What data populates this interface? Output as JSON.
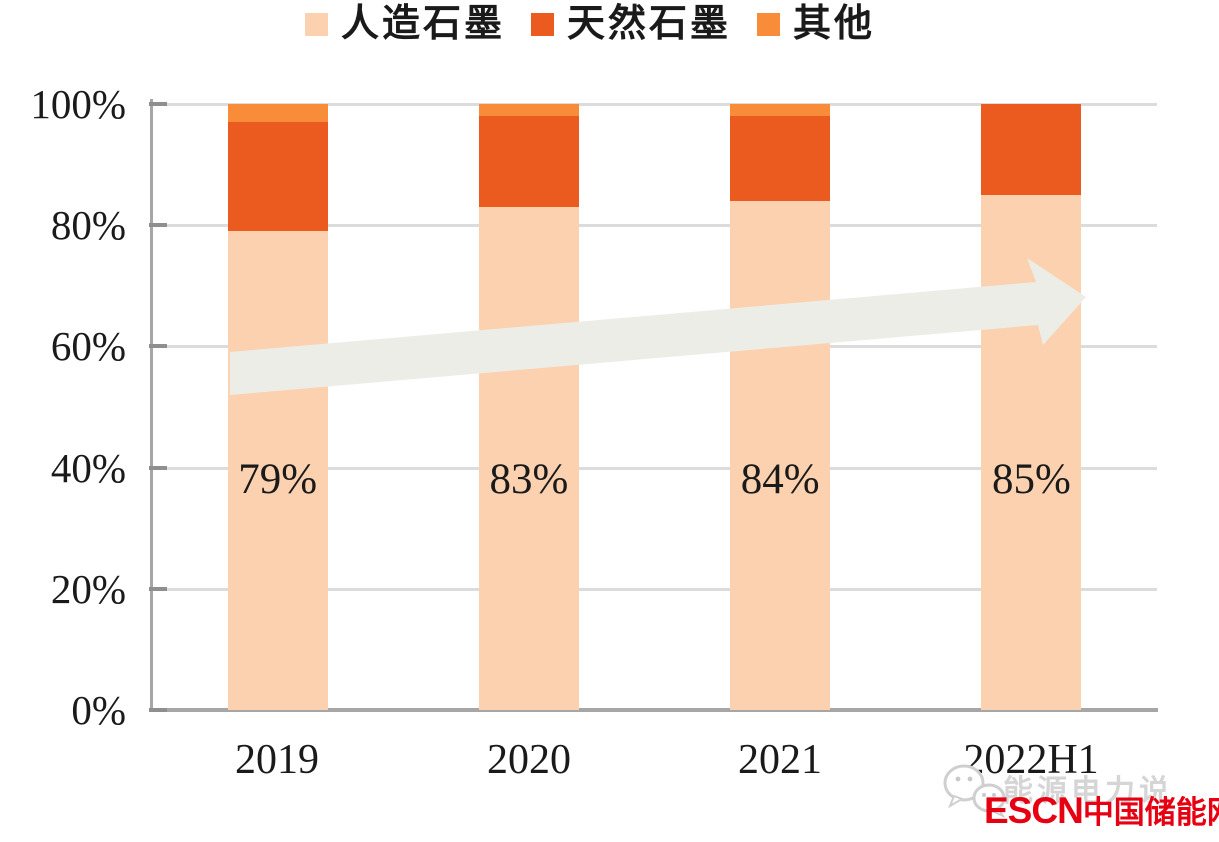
{
  "chart_data": {
    "type": "bar",
    "stacked": true,
    "categories": [
      "2019",
      "2020",
      "2021",
      "2022H1"
    ],
    "series": [
      {
        "name": "人造石墨",
        "color": "#FBD1AF",
        "values": [
          79,
          83,
          84,
          85
        ]
      },
      {
        "name": "天然石墨",
        "color": "#EB5A1E",
        "values": [
          18,
          15,
          14,
          15
        ]
      },
      {
        "name": "其他",
        "color": "#F98C38",
        "values": [
          3,
          2,
          2,
          0
        ]
      }
    ],
    "bar_labels": [
      "79%",
      "83%",
      "84%",
      "85%"
    ],
    "yticks": [
      "0%",
      "20%",
      "40%",
      "60%",
      "80%",
      "100%"
    ],
    "ylim": [
      0,
      100
    ],
    "grid": true,
    "legend_position": "top",
    "annotation": "rising-trend-arrow"
  },
  "legend": {
    "items": [
      {
        "label": "人造石墨",
        "color": "#FBD1AF"
      },
      {
        "label": "天然石墨",
        "color": "#EB5A1E"
      },
      {
        "label": "其他",
        "color": "#F98C38"
      }
    ]
  },
  "watermark": {
    "wechat_text": "能源电力说",
    "escn": "ESCN",
    "escn_cn": "中国储能网"
  },
  "colors": {
    "grid": "#DCDCDC",
    "axis": "#A6A6A6",
    "arrow": "#EDEDE8",
    "logo_red": "#E60012",
    "watermark_gray": "#D5D5D5"
  }
}
